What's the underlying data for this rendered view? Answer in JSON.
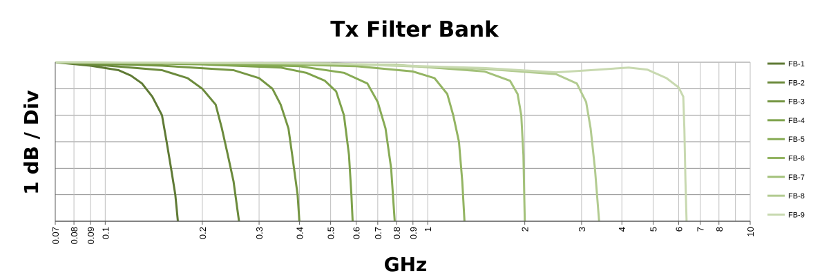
{
  "chart_data": {
    "type": "line",
    "title": "Tx Filter Bank",
    "xlabel": "GHz",
    "ylabel": "1 dB / Div",
    "x_scale": "log",
    "xlim": [
      0.07,
      10
    ],
    "ylim": [
      -6,
      0
    ],
    "grid": true,
    "legend_position": "right",
    "x_ticks": [
      0.07,
      0.08,
      0.09,
      0.1,
      0.2,
      0.3,
      0.4,
      0.5,
      0.6,
      0.7,
      0.8,
      0.9,
      1,
      2,
      3,
      4,
      5,
      6,
      7,
      8,
      10
    ],
    "x_tick_labels": [
      "0.07",
      "0.08",
      "0.09",
      "0.1",
      "0.2",
      "0.3",
      "0.4",
      "0.5",
      "0.6",
      "0.7",
      "0.8",
      "0.9",
      "1",
      "2",
      "3",
      "4",
      "5",
      "6",
      "7",
      "8",
      "10"
    ],
    "series": [
      {
        "name": "FB-1",
        "color": "#5f7a35",
        "points": [
          [
            0.07,
            0
          ],
          [
            0.09,
            -0.13
          ],
          [
            0.11,
            -0.3
          ],
          [
            0.12,
            -0.5
          ],
          [
            0.13,
            -0.8
          ],
          [
            0.14,
            -1.3
          ],
          [
            0.15,
            -2.0
          ],
          [
            0.155,
            -3.0
          ],
          [
            0.16,
            -4.0
          ],
          [
            0.165,
            -5.0
          ],
          [
            0.168,
            -6.0
          ]
        ]
      },
      {
        "name": "FB-2",
        "color": "#6b8a3c",
        "points": [
          [
            0.07,
            0
          ],
          [
            0.1,
            -0.12
          ],
          [
            0.15,
            -0.3
          ],
          [
            0.18,
            -0.6
          ],
          [
            0.2,
            -1.0
          ],
          [
            0.22,
            -1.6
          ],
          [
            0.23,
            -2.5
          ],
          [
            0.24,
            -3.5
          ],
          [
            0.25,
            -4.5
          ],
          [
            0.26,
            -6.0
          ]
        ]
      },
      {
        "name": "FB-3",
        "color": "#759643",
        "points": [
          [
            0.07,
            0
          ],
          [
            0.15,
            -0.13
          ],
          [
            0.25,
            -0.3
          ],
          [
            0.3,
            -0.6
          ],
          [
            0.33,
            -1.0
          ],
          [
            0.35,
            -1.6
          ],
          [
            0.37,
            -2.5
          ],
          [
            0.38,
            -3.5
          ],
          [
            0.395,
            -5.0
          ],
          [
            0.4,
            -6.0
          ]
        ]
      },
      {
        "name": "FB-4",
        "color": "#7ea24b",
        "points": [
          [
            0.07,
            0
          ],
          [
            0.2,
            -0.08
          ],
          [
            0.35,
            -0.2
          ],
          [
            0.42,
            -0.4
          ],
          [
            0.48,
            -0.7
          ],
          [
            0.52,
            -1.1
          ],
          [
            0.55,
            -2.0
          ],
          [
            0.57,
            -3.5
          ],
          [
            0.58,
            -5.0
          ],
          [
            0.585,
            -6.0
          ]
        ]
      },
      {
        "name": "FB-5",
        "color": "#87ab55",
        "points": [
          [
            0.07,
            0
          ],
          [
            0.2,
            -0.05
          ],
          [
            0.4,
            -0.15
          ],
          [
            0.55,
            -0.4
          ],
          [
            0.65,
            -0.8
          ],
          [
            0.7,
            -1.5
          ],
          [
            0.74,
            -2.5
          ],
          [
            0.77,
            -4.0
          ],
          [
            0.79,
            -6.0
          ]
        ]
      },
      {
        "name": "FB-6",
        "color": "#93b462",
        "points": [
          [
            0.07,
            0
          ],
          [
            0.3,
            -0.05
          ],
          [
            0.6,
            -0.15
          ],
          [
            0.9,
            -0.35
          ],
          [
            1.05,
            -0.6
          ],
          [
            1.15,
            -1.2
          ],
          [
            1.2,
            -2.0
          ],
          [
            1.25,
            -3.0
          ],
          [
            1.28,
            -4.5
          ],
          [
            1.3,
            -6.0
          ]
        ]
      },
      {
        "name": "FB-7",
        "color": "#a3c17a",
        "points": [
          [
            0.07,
            0
          ],
          [
            0.3,
            -0.04
          ],
          [
            0.8,
            -0.1
          ],
          [
            1.5,
            -0.35
          ],
          [
            1.8,
            -0.7
          ],
          [
            1.9,
            -1.2
          ],
          [
            1.95,
            -2.0
          ],
          [
            1.98,
            -3.5
          ],
          [
            2.0,
            -6.0
          ]
        ]
      },
      {
        "name": "FB-8",
        "color": "#b2cb90",
        "points": [
          [
            0.07,
            0
          ],
          [
            0.5,
            -0.05
          ],
          [
            1.5,
            -0.25
          ],
          [
            2.5,
            -0.45
          ],
          [
            2.9,
            -0.8
          ],
          [
            3.1,
            -1.5
          ],
          [
            3.2,
            -2.5
          ],
          [
            3.3,
            -4.0
          ],
          [
            3.4,
            -6.0
          ]
        ]
      },
      {
        "name": "FB-9",
        "color": "#c8d9b0",
        "points": [
          [
            0.07,
            0
          ],
          [
            0.5,
            -0.05
          ],
          [
            1.5,
            -0.22
          ],
          [
            2.5,
            -0.38
          ],
          [
            3.2,
            -0.3
          ],
          [
            4.2,
            -0.2
          ],
          [
            4.8,
            -0.28
          ],
          [
            5.5,
            -0.6
          ],
          [
            6.0,
            -0.95
          ],
          [
            6.2,
            -1.3
          ],
          [
            6.25,
            -2.5
          ],
          [
            6.3,
            -4.5
          ],
          [
            6.35,
            -6.0
          ]
        ]
      }
    ]
  }
}
